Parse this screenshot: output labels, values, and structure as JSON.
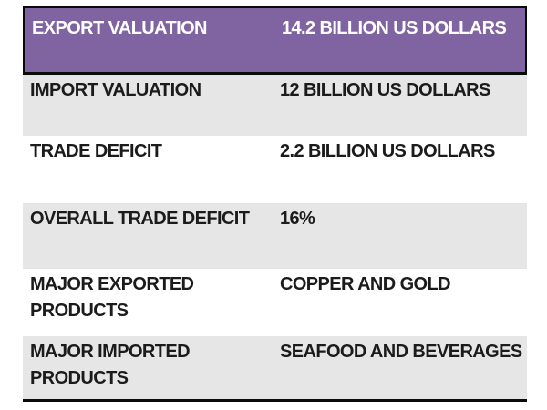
{
  "chart_data": {
    "type": "table",
    "title": "",
    "header_row_index": 0,
    "rows": [
      [
        "EXPORT VALUATION",
        "14.2 BILLION US DOLLARS"
      ],
      [
        "IMPORT VALUATION",
        "12 BILLION US DOLLARS"
      ],
      [
        "TRADE DEFICIT",
        "2.2 BILLION US DOLLARS"
      ],
      [
        "OVERALL TRADE DEFICIT",
        "16%"
      ],
      [
        "MAJOR EXPORTED PRODUCTS",
        "COPPER AND GOLD"
      ],
      [
        "MAJOR IMPORTED PRODUCTS",
        "SEAFOOD AND BEVERAGES"
      ]
    ]
  },
  "table": {
    "header": {
      "label": "EXPORT VALUATION",
      "value": "14.2 BILLION US DOLLARS"
    },
    "rows": [
      {
        "label": "IMPORT VALUATION",
        "value": "12 BILLION US DOLLARS"
      },
      {
        "label": "TRADE DEFICIT",
        "value": "2.2 BILLION US DOLLARS"
      },
      {
        "label": "OVERALL TRADE DEFICIT",
        "value": "16%"
      },
      {
        "label": "MAJOR EXPORTED PRODUCTS",
        "value": "COPPER AND GOLD"
      },
      {
        "label": "MAJOR IMPORTED PRODUCTS",
        "value": "SEAFOOD AND BEVERAGES"
      }
    ],
    "colors": {
      "header_bg": "#8064A2",
      "header_text": "#FFFFFF",
      "alt_row_bg": "#E7E6E6",
      "row_bg": "#FFFFFF",
      "border": "#0A0A0A",
      "body_text": "#1B1B1B"
    }
  }
}
